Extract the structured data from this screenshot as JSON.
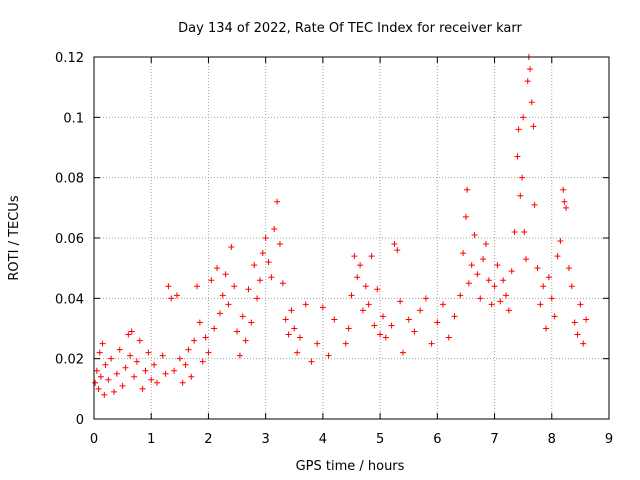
{
  "chart_data": {
    "type": "scatter",
    "title": "Day 134 of 2022, Rate Of TEC Index for receiver karr",
    "xlabel": "GPS time / hours",
    "ylabel": "ROTI / TECUs",
    "xlim": [
      0,
      9
    ],
    "ylim": [
      0,
      0.12
    ],
    "x_ticks": [
      0,
      1,
      2,
      3,
      4,
      5,
      6,
      7,
      8,
      9
    ],
    "x_tick_labels": [
      "0",
      "1",
      "2",
      "3",
      "4",
      "5",
      "6",
      "7",
      "8",
      "9"
    ],
    "y_ticks": [
      0,
      0.02,
      0.04,
      0.06,
      0.08,
      0.1,
      0.12
    ],
    "y_tick_labels": [
      "0",
      "0.02",
      "0.04",
      "0.06",
      "0.08",
      "0.1",
      "0.12"
    ],
    "grid": true,
    "marker": "plus",
    "series": [
      {
        "name": "ROTI",
        "color": "#ff0000",
        "points": [
          [
            0.02,
            0.012
          ],
          [
            0.05,
            0.016
          ],
          [
            0.08,
            0.01
          ],
          [
            0.1,
            0.022
          ],
          [
            0.12,
            0.014
          ],
          [
            0.15,
            0.025
          ],
          [
            0.18,
            0.008
          ],
          [
            0.2,
            0.018
          ],
          [
            0.25,
            0.013
          ],
          [
            0.3,
            0.02
          ],
          [
            0.35,
            0.009
          ],
          [
            0.4,
            0.015
          ],
          [
            0.45,
            0.023
          ],
          [
            0.5,
            0.011
          ],
          [
            0.55,
            0.017
          ],
          [
            0.6,
            0.028
          ],
          [
            0.63,
            0.021
          ],
          [
            0.66,
            0.029
          ],
          [
            0.7,
            0.014
          ],
          [
            0.75,
            0.019
          ],
          [
            0.8,
            0.026
          ],
          [
            0.85,
            0.01
          ],
          [
            0.9,
            0.016
          ],
          [
            0.95,
            0.022
          ],
          [
            1.0,
            0.013
          ],
          [
            1.05,
            0.018
          ],
          [
            1.1,
            0.012
          ],
          [
            1.2,
            0.021
          ],
          [
            1.25,
            0.015
          ],
          [
            1.3,
            0.044
          ],
          [
            1.35,
            0.04
          ],
          [
            1.4,
            0.016
          ],
          [
            1.45,
            0.041
          ],
          [
            1.5,
            0.02
          ],
          [
            1.55,
            0.012
          ],
          [
            1.6,
            0.018
          ],
          [
            1.65,
            0.023
          ],
          [
            1.7,
            0.014
          ],
          [
            1.75,
            0.026
          ],
          [
            1.8,
            0.044
          ],
          [
            1.85,
            0.032
          ],
          [
            1.9,
            0.019
          ],
          [
            1.95,
            0.027
          ],
          [
            2.0,
            0.022
          ],
          [
            2.05,
            0.046
          ],
          [
            2.1,
            0.03
          ],
          [
            2.15,
            0.05
          ],
          [
            2.2,
            0.035
          ],
          [
            2.25,
            0.041
          ],
          [
            2.3,
            0.048
          ],
          [
            2.35,
            0.038
          ],
          [
            2.4,
            0.057
          ],
          [
            2.45,
            0.044
          ],
          [
            2.5,
            0.029
          ],
          [
            2.55,
            0.021
          ],
          [
            2.6,
            0.034
          ],
          [
            2.65,
            0.026
          ],
          [
            2.7,
            0.043
          ],
          [
            2.75,
            0.032
          ],
          [
            2.8,
            0.051
          ],
          [
            2.85,
            0.04
          ],
          [
            2.9,
            0.046
          ],
          [
            2.95,
            0.055
          ],
          [
            3.0,
            0.06
          ],
          [
            3.05,
            0.052
          ],
          [
            3.1,
            0.047
          ],
          [
            3.15,
            0.063
          ],
          [
            3.2,
            0.072
          ],
          [
            3.25,
            0.058
          ],
          [
            3.3,
            0.045
          ],
          [
            3.35,
            0.033
          ],
          [
            3.4,
            0.028
          ],
          [
            3.45,
            0.036
          ],
          [
            3.5,
            0.03
          ],
          [
            3.55,
            0.022
          ],
          [
            3.6,
            0.027
          ],
          [
            3.7,
            0.038
          ],
          [
            3.8,
            0.019
          ],
          [
            3.9,
            0.025
          ],
          [
            4.0,
            0.037
          ],
          [
            4.1,
            0.021
          ],
          [
            4.2,
            0.033
          ],
          [
            4.4,
            0.025
          ],
          [
            4.45,
            0.03
          ],
          [
            4.5,
            0.041
          ],
          [
            4.55,
            0.054
          ],
          [
            4.6,
            0.047
          ],
          [
            4.65,
            0.051
          ],
          [
            4.7,
            0.036
          ],
          [
            4.75,
            0.044
          ],
          [
            4.8,
            0.038
          ],
          [
            4.85,
            0.054
          ],
          [
            4.9,
            0.031
          ],
          [
            4.95,
            0.043
          ],
          [
            5.0,
            0.028
          ],
          [
            5.05,
            0.034
          ],
          [
            5.1,
            0.027
          ],
          [
            5.2,
            0.031
          ],
          [
            5.25,
            0.058
          ],
          [
            5.3,
            0.056
          ],
          [
            5.35,
            0.039
          ],
          [
            5.4,
            0.022
          ],
          [
            5.5,
            0.033
          ],
          [
            5.6,
            0.029
          ],
          [
            5.7,
            0.036
          ],
          [
            5.8,
            0.04
          ],
          [
            5.9,
            0.025
          ],
          [
            6.0,
            0.032
          ],
          [
            6.1,
            0.038
          ],
          [
            6.2,
            0.027
          ],
          [
            6.3,
            0.034
          ],
          [
            6.4,
            0.041
          ],
          [
            6.45,
            0.055
          ],
          [
            6.5,
            0.067
          ],
          [
            6.52,
            0.076
          ],
          [
            6.55,
            0.045
          ],
          [
            6.6,
            0.051
          ],
          [
            6.65,
            0.061
          ],
          [
            6.7,
            0.048
          ],
          [
            6.75,
            0.04
          ],
          [
            6.8,
            0.053
          ],
          [
            6.85,
            0.058
          ],
          [
            6.9,
            0.046
          ],
          [
            6.95,
            0.038
          ],
          [
            7.0,
            0.044
          ],
          [
            7.05,
            0.051
          ],
          [
            7.1,
            0.039
          ],
          [
            7.15,
            0.046
          ],
          [
            7.2,
            0.041
          ],
          [
            7.25,
            0.036
          ],
          [
            7.3,
            0.049
          ],
          [
            7.35,
            0.062
          ],
          [
            7.4,
            0.087
          ],
          [
            7.42,
            0.096
          ],
          [
            7.45,
            0.074
          ],
          [
            7.48,
            0.08
          ],
          [
            7.5,
            0.1
          ],
          [
            7.52,
            0.062
          ],
          [
            7.55,
            0.053
          ],
          [
            7.58,
            0.112
          ],
          [
            7.6,
            0.12
          ],
          [
            7.62,
            0.116
          ],
          [
            7.65,
            0.105
          ],
          [
            7.68,
            0.097
          ],
          [
            7.7,
            0.071
          ],
          [
            7.75,
            0.05
          ],
          [
            7.8,
            0.038
          ],
          [
            7.85,
            0.044
          ],
          [
            7.9,
            0.03
          ],
          [
            7.95,
            0.047
          ],
          [
            8.0,
            0.04
          ],
          [
            8.05,
            0.034
          ],
          [
            8.1,
            0.054
          ],
          [
            8.15,
            0.059
          ],
          [
            8.2,
            0.076
          ],
          [
            8.22,
            0.072
          ],
          [
            8.25,
            0.07
          ],
          [
            8.3,
            0.05
          ],
          [
            8.35,
            0.044
          ],
          [
            8.4,
            0.032
          ],
          [
            8.45,
            0.028
          ],
          [
            8.5,
            0.038
          ],
          [
            8.55,
            0.025
          ],
          [
            8.6,
            0.033
          ]
        ]
      }
    ]
  }
}
